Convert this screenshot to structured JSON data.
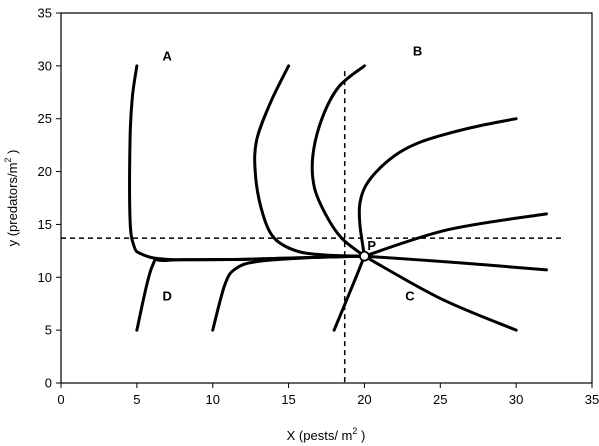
{
  "chart_data": {
    "type": "line",
    "title": "",
    "xlabel": "X  (pests/ m",
    "xlabel_sup": "2",
    "xlabel_close": " )",
    "ylabel": "y (predators/m",
    "ylabel_sup": "2",
    "ylabel_close": " )",
    "xlim": [
      0,
      35
    ],
    "ylim": [
      0,
      35
    ],
    "x_ticks": [
      0,
      5,
      10,
      15,
      20,
      25,
      30,
      35
    ],
    "y_ticks": [
      0,
      5,
      10,
      15,
      20,
      25,
      30,
      35
    ],
    "grid": false,
    "equilibrium": {
      "x": 20,
      "y": 12,
      "label": "P"
    },
    "reference_lines": [
      {
        "orientation": "vertical",
        "value": 18.7
      },
      {
        "orientation": "horizontal",
        "value": 13.7
      }
    ],
    "region_labels": [
      {
        "text": "A",
        "x": 7,
        "y": 30.5
      },
      {
        "text": "B",
        "x": 23.5,
        "y": 31
      },
      {
        "text": "C",
        "x": 23,
        "y": 7.8
      },
      {
        "text": "D",
        "x": 7,
        "y": 7.8
      }
    ],
    "series": [
      {
        "points": [
          [
            5,
            30
          ],
          [
            4.7,
            27
          ],
          [
            4.55,
            23
          ],
          [
            4.55,
            15.5
          ],
          [
            4.8,
            13
          ],
          [
            5.3,
            12.2
          ],
          [
            7,
            11.7
          ],
          [
            12,
            11.7
          ],
          [
            17,
            11.9
          ],
          [
            20,
            12
          ]
        ]
      },
      {
        "points": [
          [
            15,
            30
          ],
          [
            13.8,
            26.5
          ],
          [
            12.9,
            23
          ],
          [
            12.8,
            20
          ],
          [
            13.2,
            16.5
          ],
          [
            14,
            13.8
          ],
          [
            15.5,
            12.5
          ],
          [
            17.5,
            12.1
          ],
          [
            20,
            12
          ]
        ]
      },
      {
        "points": [
          [
            20,
            30
          ],
          [
            18.3,
            28
          ],
          [
            17.2,
            25
          ],
          [
            16.6,
            21.5
          ],
          [
            16.7,
            18.5
          ],
          [
            17.5,
            15.8
          ],
          [
            18.5,
            13.7
          ],
          [
            20,
            12
          ]
        ]
      },
      {
        "points": [
          [
            30,
            25
          ],
          [
            27.5,
            24.3
          ],
          [
            25.5,
            23.6
          ],
          [
            23.7,
            22.8
          ],
          [
            22.3,
            21.8
          ],
          [
            21,
            20.3
          ],
          [
            20.1,
            18.7
          ],
          [
            19.7,
            17
          ],
          [
            19.7,
            15
          ],
          [
            20,
            12
          ]
        ]
      },
      {
        "points": [
          [
            32,
            16
          ],
          [
            25.5,
            14.5
          ],
          [
            20,
            12
          ]
        ]
      },
      {
        "points": [
          [
            32,
            10.7
          ],
          [
            26,
            11.4
          ],
          [
            20,
            12
          ]
        ]
      },
      {
        "points": [
          [
            30,
            5
          ],
          [
            25,
            8
          ],
          [
            20,
            12
          ]
        ]
      },
      {
        "points": [
          [
            18,
            5
          ],
          [
            19.3,
            9.5
          ],
          [
            20,
            12
          ]
        ]
      },
      {
        "points": [
          [
            10,
            5
          ],
          [
            10.8,
            9.3
          ],
          [
            11.5,
            10.8
          ],
          [
            13,
            11.5
          ],
          [
            17,
            11.9
          ],
          [
            20,
            12
          ]
        ]
      },
      {
        "points": [
          [
            5,
            5
          ],
          [
            6,
            11
          ],
          [
            7,
            11.6
          ],
          [
            12,
            11.7
          ],
          [
            17,
            11.9
          ],
          [
            20,
            12
          ]
        ]
      }
    ]
  }
}
